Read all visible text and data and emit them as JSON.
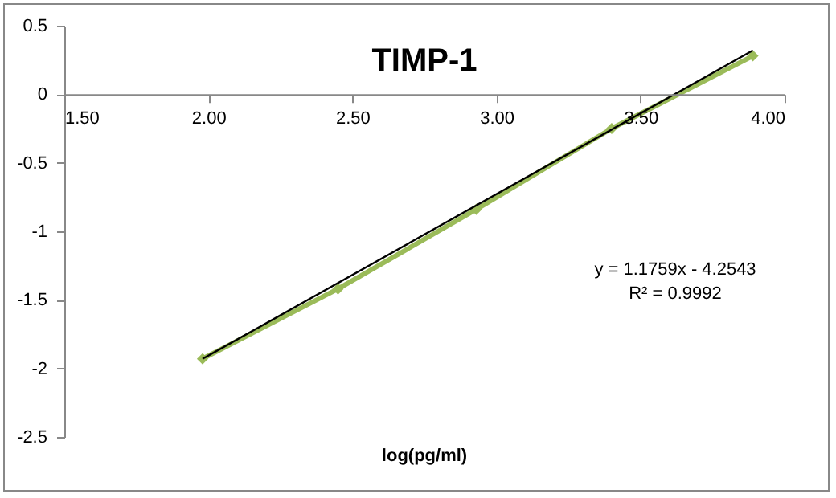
{
  "chart_data": {
    "type": "line",
    "title": "TIMP-1",
    "xlabel": "log(pg/ml)",
    "x": [
      1.98,
      2.45,
      2.93,
      3.4,
      3.89
    ],
    "series": [
      {
        "color": "#9bbb59",
        "values": [
          -1.93,
          -1.42,
          -0.84,
          -0.25,
          0.28
        ],
        "marker": "diamond"
      },
      {
        "type": "line",
        "color": "#000000",
        "x": [
          1.98,
          3.89
        ],
        "values": [
          -1.93,
          0.32
        ],
        "marker": "none"
      }
    ],
    "xlim": [
      1.5,
      4.0
    ],
    "xticks": [
      {
        "value": 1.5,
        "label": "1.50"
      },
      {
        "value": 2.0,
        "label": "2.00"
      },
      {
        "value": 2.5,
        "label": "2.50"
      },
      {
        "value": 3.0,
        "label": "3.00"
      },
      {
        "value": 3.5,
        "label": "3.50"
      },
      {
        "value": 4.0,
        "label": "4.00"
      }
    ],
    "ylim": [
      -2.5,
      0.5
    ],
    "yticks": [
      -2.5,
      -2,
      -1.5,
      -1,
      -0.5,
      0,
      0.5
    ],
    "annotations": [
      "y = 1.1759x - 4.2543",
      "R² = 0.9992"
    ],
    "grid": false
  }
}
